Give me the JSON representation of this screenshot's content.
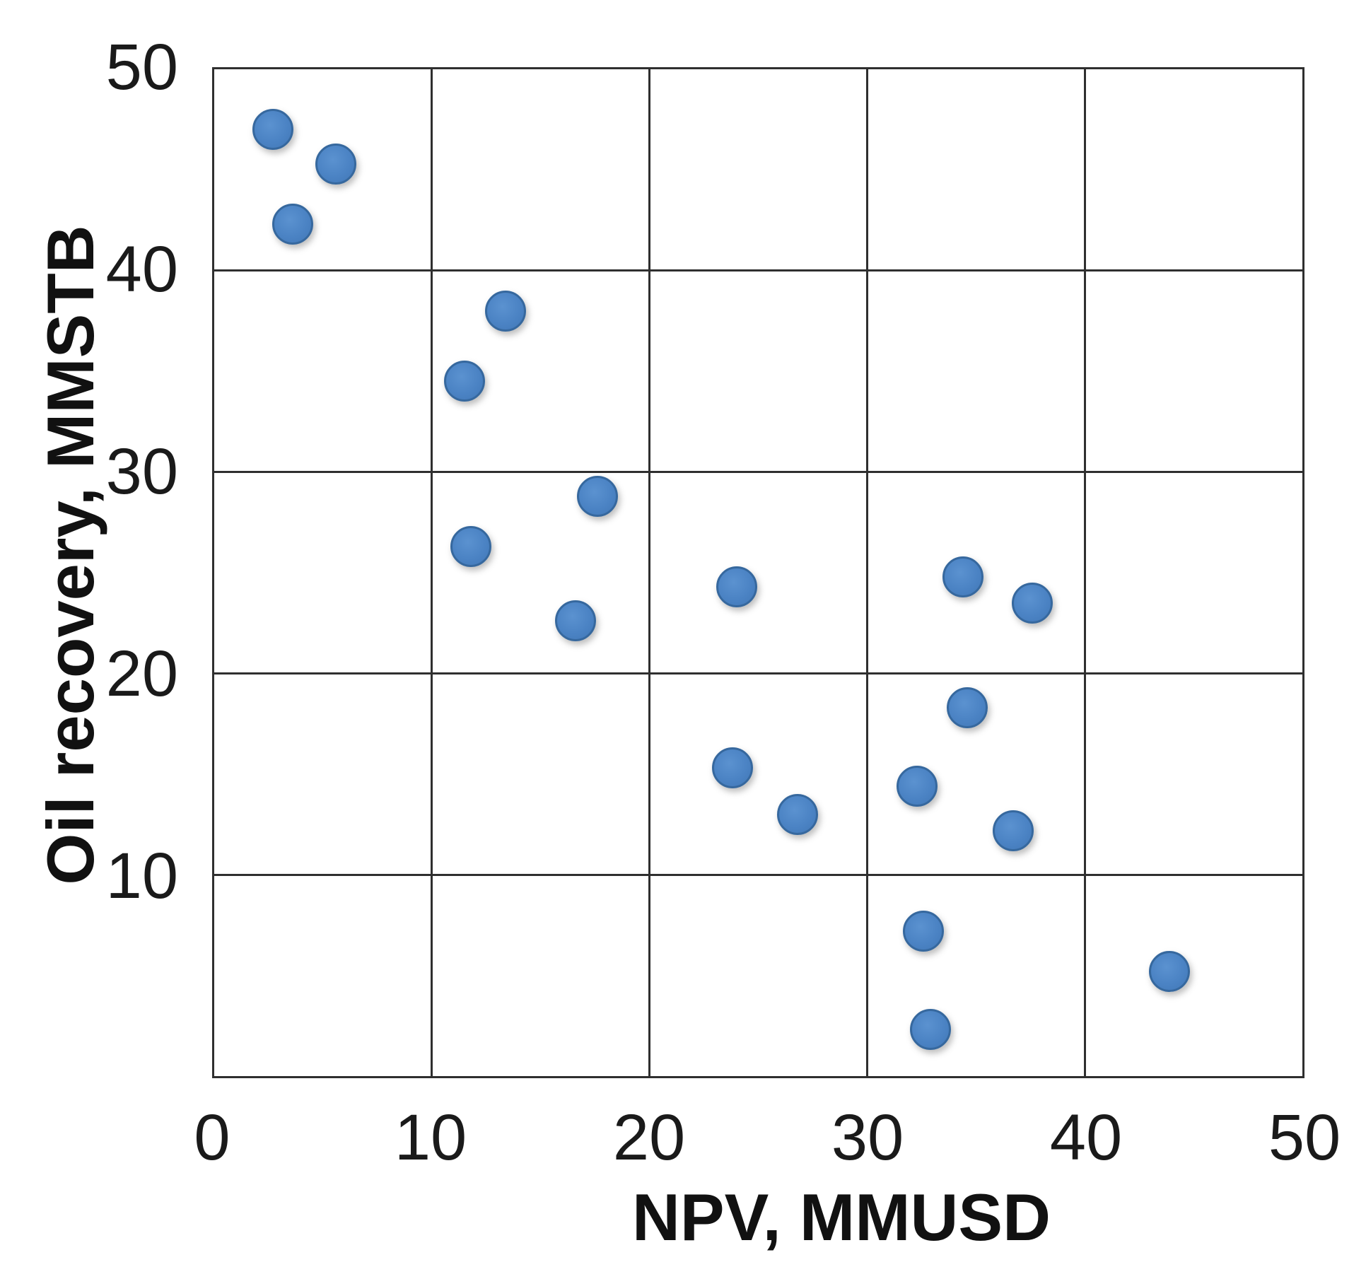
{
  "chart_data": {
    "type": "scatter",
    "title": "",
    "xlabel": "NPV, MMUSD",
    "ylabel": "Oil recovery, MMSTB",
    "xlim": [
      0,
      50
    ],
    "ylim": [
      0,
      50
    ],
    "x_ticks": [
      0,
      10,
      20,
      30,
      40,
      50
    ],
    "y_ticks": [
      10,
      20,
      30,
      40,
      50
    ],
    "grid": true,
    "grid_interval": 10,
    "legend": false,
    "marker_fill_color": "#4b83c4",
    "marker_edge_color": "#36689e",
    "gridline_color": "#2f2f2f",
    "points": [
      {
        "x": 2.7,
        "y": 47.0
      },
      {
        "x": 5.6,
        "y": 45.3
      },
      {
        "x": 3.6,
        "y": 42.3
      },
      {
        "x": 13.4,
        "y": 38.0
      },
      {
        "x": 11.5,
        "y": 34.5
      },
      {
        "x": 17.6,
        "y": 28.8
      },
      {
        "x": 11.8,
        "y": 26.3
      },
      {
        "x": 16.6,
        "y": 22.6
      },
      {
        "x": 24.0,
        "y": 24.3
      },
      {
        "x": 23.8,
        "y": 15.3
      },
      {
        "x": 26.8,
        "y": 13.0
      },
      {
        "x": 34.4,
        "y": 24.8
      },
      {
        "x": 37.6,
        "y": 23.5
      },
      {
        "x": 34.6,
        "y": 18.3
      },
      {
        "x": 32.3,
        "y": 14.4
      },
      {
        "x": 36.7,
        "y": 12.2
      },
      {
        "x": 32.6,
        "y": 7.2
      },
      {
        "x": 32.9,
        "y": 2.3
      },
      {
        "x": 43.9,
        "y": 5.2
      }
    ]
  }
}
